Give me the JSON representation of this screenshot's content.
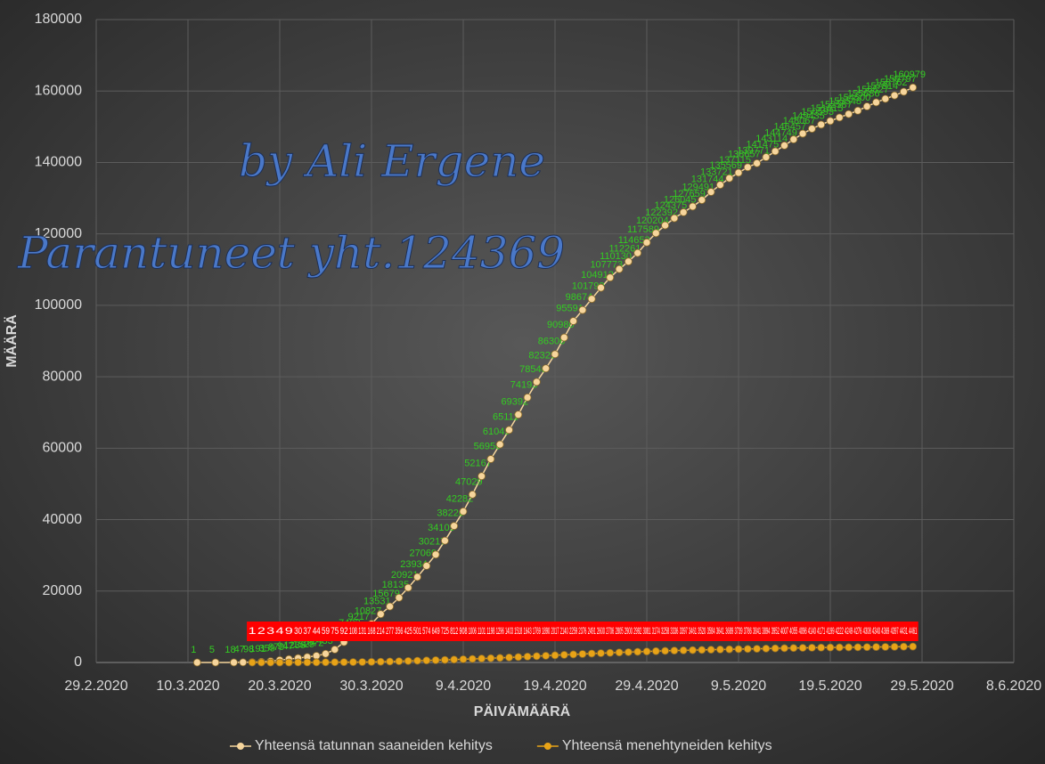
{
  "chart_data": {
    "type": "line",
    "annotations": [
      "by Ali Ergene",
      "Parantuneet yht.124369"
    ],
    "x_label": "PÄIVÄMÄÄRÄ",
    "y_label": "MÄÄRÄ",
    "x": [
      "2020-03-11",
      "2020-03-13",
      "2020-03-15",
      "2020-03-16",
      "2020-03-17",
      "2020-03-18",
      "2020-03-19",
      "2020-03-20",
      "2020-03-21",
      "2020-03-22",
      "2020-03-23",
      "2020-03-24",
      "2020-03-25",
      "2020-03-26",
      "2020-03-27",
      "2020-03-28",
      "2020-03-29",
      "2020-03-30",
      "2020-03-31",
      "2020-04-01",
      "2020-04-02",
      "2020-04-03",
      "2020-04-04",
      "2020-04-05",
      "2020-04-06",
      "2020-04-07",
      "2020-04-08",
      "2020-04-09",
      "2020-04-10",
      "2020-04-11",
      "2020-04-12",
      "2020-04-13",
      "2020-04-14",
      "2020-04-15",
      "2020-04-16",
      "2020-04-17",
      "2020-04-18",
      "2020-04-19",
      "2020-04-20",
      "2020-04-21",
      "2020-04-22",
      "2020-04-23",
      "2020-04-24",
      "2020-04-25",
      "2020-04-26",
      "2020-04-27",
      "2020-04-28",
      "2020-04-29",
      "2020-04-30",
      "2020-05-01",
      "2020-05-02",
      "2020-05-03",
      "2020-05-04",
      "2020-05-05",
      "2020-05-06",
      "2020-05-07",
      "2020-05-08",
      "2020-05-09",
      "2020-05-10",
      "2020-05-11",
      "2020-05-12",
      "2020-05-13",
      "2020-05-14",
      "2020-05-15",
      "2020-05-16",
      "2020-05-17",
      "2020-05-18",
      "2020-05-19",
      "2020-05-20",
      "2020-05-21",
      "2020-05-22",
      "2020-05-23",
      "2020-05-24",
      "2020-05-25",
      "2020-05-26",
      "2020-05-27",
      "2020-05-28"
    ],
    "series": [
      {
        "name": "Yhteensä tatunnan saaneiden kehitys",
        "color": "#f6d59c",
        "label_color": "#33cc22",
        "values": [
          1,
          5,
          18,
          47,
          98,
          191,
          359,
          670,
          947,
          1236,
          1529,
          1872,
          2433,
          3629,
          5698,
          7402,
          9217,
          10827,
          13531,
          15679,
          18135,
          20921,
          23934,
          27069,
          30217,
          34109,
          38226,
          42282,
          47029,
          52167,
          56956,
          61049,
          65111,
          69392,
          74193,
          78546,
          82329,
          86306,
          90980,
          95591,
          98674,
          101790,
          104912,
          107773,
          110130,
          112261,
          114653,
          117589,
          120204,
          122392,
          124375,
          126045,
          127659,
          129491,
          131744,
          133721,
          135569,
          137115,
          138657,
          139771,
          141475,
          143114,
          144749,
          146457,
          148067,
          149435,
          150593,
          151615,
          152587,
          153548,
          154500,
          155686,
          156827,
          157814,
          158762,
          159797,
          160979
        ]
      },
      {
        "name": "Yhteensä menehtyneiden kehitys",
        "color": "#e8a317",
        "label_color": "#ff0000",
        "values": [
          null,
          null,
          null,
          null,
          1,
          2,
          3,
          4,
          9,
          30,
          37,
          44,
          59,
          75,
          92,
          108,
          131,
          168,
          214,
          277,
          356,
          425,
          501,
          574,
          649,
          725,
          812,
          908,
          1006,
          1101,
          1198,
          1296,
          1403,
          1518,
          1643,
          1769,
          1890,
          2017,
          2140,
          2259,
          2376,
          2491,
          2600,
          2706,
          2805,
          2900,
          2992,
          3081,
          3174,
          3258,
          3336,
          3397,
          3461,
          3520,
          3584,
          3641,
          3689,
          3739,
          3786,
          3841,
          3894,
          3952,
          4007,
          4055,
          4096,
          4140,
          4171,
          4199,
          4222,
          4249,
          4276,
          4308,
          4340,
          4369,
          4397,
          4431,
          4461
        ]
      }
    ],
    "xlim": [
      "2020-02-29",
      "2020-06-08"
    ],
    "xticks": [
      {
        "value": "2020-02-29",
        "label": "29.2.2020"
      },
      {
        "value": "2020-03-10",
        "label": "10.3.2020"
      },
      {
        "value": "2020-03-20",
        "label": "20.3.2020"
      },
      {
        "value": "2020-03-30",
        "label": "30.3.2020"
      },
      {
        "value": "2020-04-09",
        "label": "9.4.2020"
      },
      {
        "value": "2020-04-19",
        "label": "19.4.2020"
      },
      {
        "value": "2020-04-29",
        "label": "29.4.2020"
      },
      {
        "value": "2020-05-09",
        "label": "9.5.2020"
      },
      {
        "value": "2020-05-19",
        "label": "19.5.2020"
      },
      {
        "value": "2020-05-29",
        "label": "29.5.2020"
      },
      {
        "value": "2020-06-08",
        "label": "8.6.2020"
      }
    ],
    "ylim": [
      0,
      180000
    ],
    "yticks": [
      0,
      20000,
      40000,
      60000,
      80000,
      100000,
      120000,
      140000,
      160000,
      180000
    ],
    "grid": true,
    "legend": "bottom"
  }
}
